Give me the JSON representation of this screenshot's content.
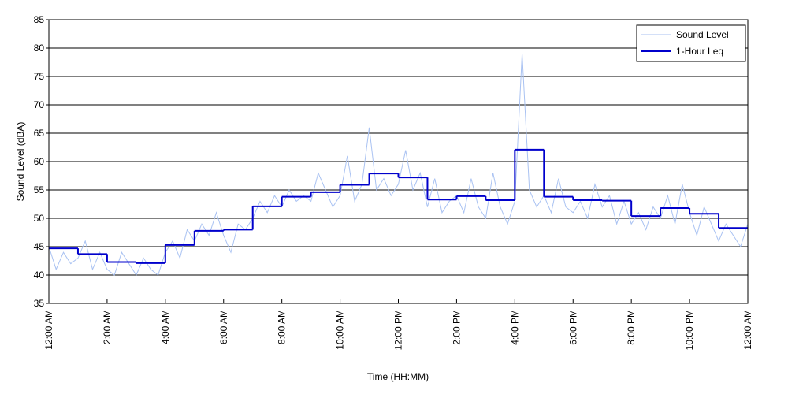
{
  "chart_data": {
    "type": "line",
    "xlabel": "Time (HH:MM)",
    "ylabel": "Sound Level (dBA)",
    "xlim": [
      0,
      24
    ],
    "xticks": [
      {
        "value": 0,
        "label": "12:00 AM"
      },
      {
        "value": 2,
        "label": "2:00 AM"
      },
      {
        "value": 4,
        "label": "4:00 AM"
      },
      {
        "value": 6,
        "label": "6:00 AM"
      },
      {
        "value": 8,
        "label": "8:00 AM"
      },
      {
        "value": 10,
        "label": "10:00 AM"
      },
      {
        "value": 12,
        "label": "12:00 PM"
      },
      {
        "value": 14,
        "label": "2:00 PM"
      },
      {
        "value": 16,
        "label": "4:00 PM"
      },
      {
        "value": 18,
        "label": "6:00 PM"
      },
      {
        "value": 20,
        "label": "8:00 PM"
      },
      {
        "value": 22,
        "label": "10:00 PM"
      },
      {
        "value": 24,
        "label": "12:00 AM"
      }
    ],
    "ylim": [
      35,
      85
    ],
    "yticks": [
      35,
      40,
      45,
      50,
      55,
      60,
      65,
      70,
      75,
      80,
      85
    ],
    "grid": true,
    "legend": "top-right",
    "series": [
      {
        "name": "Sound Level",
        "color": "#a9c2f2",
        "x": [
          0,
          0.25,
          0.5,
          0.75,
          1,
          1.25,
          1.5,
          1.75,
          2,
          2.25,
          2.5,
          2.75,
          3,
          3.25,
          3.5,
          3.75,
          4,
          4.25,
          4.5,
          4.75,
          5,
          5.25,
          5.5,
          5.75,
          6,
          6.25,
          6.5,
          6.75,
          7,
          7.25,
          7.5,
          7.75,
          8,
          8.25,
          8.5,
          8.75,
          9,
          9.25,
          9.5,
          9.75,
          10,
          10.25,
          10.5,
          10.75,
          11,
          11.25,
          11.5,
          11.75,
          12,
          12.25,
          12.5,
          12.75,
          13,
          13.25,
          13.5,
          13.75,
          14,
          14.25,
          14.5,
          14.75,
          15,
          15.25,
          15.5,
          15.75,
          16,
          16.25,
          16.5,
          16.75,
          17,
          17.25,
          17.5,
          17.75,
          18,
          18.25,
          18.5,
          18.75,
          19,
          19.25,
          19.5,
          19.75,
          20,
          20.25,
          20.5,
          20.75,
          21,
          21.25,
          21.5,
          21.75,
          22,
          22.25,
          22.5,
          22.75,
          23,
          23.25,
          23.5,
          23.75,
          24
        ],
        "values": [
          45,
          41,
          44,
          42,
          43,
          46,
          41,
          44,
          41,
          40,
          44,
          42,
          40,
          43,
          41,
          40,
          44,
          46,
          43,
          48,
          46,
          49,
          47,
          51,
          47,
          44,
          49,
          48,
          50,
          53,
          51,
          54,
          52,
          55,
          53,
          54,
          53,
          58,
          55,
          52,
          54,
          61,
          53,
          56,
          66,
          55,
          57,
          54,
          56,
          62,
          55,
          58,
          52,
          57,
          51,
          53,
          54,
          51,
          57,
          52,
          50,
          58,
          52,
          49,
          53,
          79,
          55,
          52,
          54,
          51,
          57,
          52,
          51,
          53,
          50,
          56,
          52,
          54,
          49,
          53,
          49,
          51,
          48,
          52,
          50,
          54,
          49,
          56,
          51,
          47,
          52,
          49,
          46,
          49,
          47,
          45,
          49
        ]
      },
      {
        "name": "1-Hour Leq",
        "color": "#0000cc",
        "step": true,
        "x": [
          0,
          1,
          2,
          3,
          4,
          5,
          6,
          7,
          8,
          9,
          10,
          11,
          12,
          13,
          14,
          15,
          16,
          17,
          18,
          19,
          20,
          21,
          22,
          23
        ],
        "values": [
          44.7,
          43.7,
          42.3,
          42.1,
          45.3,
          47.8,
          48.0,
          52.1,
          53.8,
          54.6,
          55.9,
          57.9,
          57.2,
          53.3,
          53.9,
          53.2,
          62.1,
          53.8,
          53.2,
          53.1,
          50.4,
          51.8,
          50.8,
          48.3
        ]
      }
    ]
  }
}
